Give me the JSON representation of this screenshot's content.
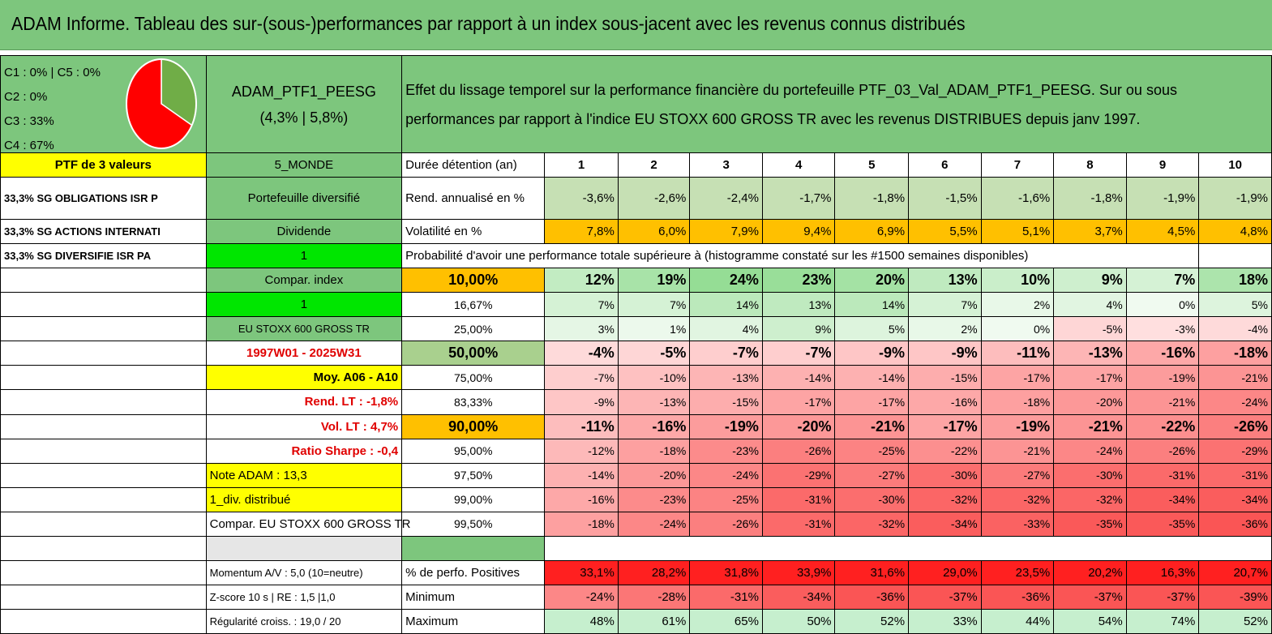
{
  "title": "ADAM Informe. Tableau des sur-(sous-)performances par rapport à un index sous-jacent avec les revenus connus distribués",
  "pie": {
    "labels": [
      "C1 : 0% | C5 : 0%",
      "C2 : 0%",
      "C3 : 33%",
      "C4 : 67%"
    ],
    "slices": [
      {
        "name": "C3",
        "value": 33,
        "color": "#70ad47"
      },
      {
        "name": "C4",
        "value": 67,
        "color": "#ff0000"
      }
    ]
  },
  "portfolio": {
    "name": "ADAM_PTF1_PEESG",
    "perf": "(4,3% | 5,8%)",
    "description_line1": "Effet du lissage temporel sur la performance financière du portefeuille PTF_03_Val_ADAM_PTF1_PEESG. Sur ou sous",
    "description_line2": "performances par rapport à l'indice EU STOXX 600 GROSS TR avec les revenus DISTRIBUES depuis janv 1997.",
    "ptf_count": "PTF de 3 valeurs",
    "zone": "5_MONDE",
    "holdings": [
      "33,3% SG OBLIGATIONS ISR P",
      "33,3% SG ACTIONS INTERNATI",
      "33,3% SG DIVERSIFIE ISR PA"
    ]
  },
  "sidebar": {
    "portfolio_type": "Portefeuille diversifié",
    "dividend": "Dividende",
    "dividend_value": "1",
    "compar_index": "Compar. index",
    "compar_value": "1",
    "index_name": "EU STOXX 600 GROSS TR",
    "period": "1997W01 - 2025W31",
    "moy": "Moy. A06 - A10",
    "rend_lt": "Rend. LT : -1,8%",
    "vol_lt": "Vol. LT : 4,7%",
    "sharpe": "Ratio Sharpe : -0,4",
    "note": "Note ADAM : 13,3",
    "div": "1_div. distribué",
    "compar_full": "Compar. EU STOXX 600 GROSS TR",
    "momentum": "Momentum A/V : 5,0 (10=neutre)",
    "zscore": "Z-score 10 s | RE : 1,5 |1,0",
    "regularite": "Régularité croiss. : 19,0 / 20"
  },
  "table": {
    "years_label": "Durée détention (an)",
    "years": [
      "1",
      "2",
      "3",
      "4",
      "5",
      "6",
      "7",
      "8",
      "9",
      "10"
    ],
    "rend_label": "Rend. annualisé en %",
    "rend": [
      "-3,6%",
      "-2,6%",
      "-2,4%",
      "-1,7%",
      "-1,8%",
      "-1,5%",
      "-1,6%",
      "-1,8%",
      "-1,9%",
      "-1,9%"
    ],
    "vol_label": "Volatilité en %",
    "vol": [
      "7,8%",
      "6,0%",
      "7,9%",
      "9,4%",
      "6,9%",
      "5,5%",
      "5,1%",
      "3,7%",
      "4,5%",
      "4,8%"
    ],
    "proba_label": "Probabilité d'avoir une performance totale supérieure à (histogramme constaté sur les #1500 semaines disponibles)",
    "quantiles": [
      {
        "label": "10,00%",
        "values": [
          "12%",
          "19%",
          "24%",
          "23%",
          "20%",
          "13%",
          "10%",
          "9%",
          "7%",
          "18%"
        ]
      },
      {
        "label": "16,67%",
        "values": [
          "7%",
          "7%",
          "14%",
          "13%",
          "14%",
          "7%",
          "2%",
          "4%",
          "0%",
          "5%"
        ]
      },
      {
        "label": "25,00%",
        "values": [
          "3%",
          "1%",
          "4%",
          "9%",
          "5%",
          "2%",
          "0%",
          "-5%",
          "-3%",
          "-4%"
        ]
      },
      {
        "label": "50,00%",
        "values": [
          "-4%",
          "-5%",
          "-7%",
          "-7%",
          "-9%",
          "-9%",
          "-11%",
          "-13%",
          "-16%",
          "-18%"
        ]
      },
      {
        "label": "75,00%",
        "values": [
          "-7%",
          "-10%",
          "-13%",
          "-14%",
          "-14%",
          "-15%",
          "-17%",
          "-17%",
          "-19%",
          "-21%"
        ]
      },
      {
        "label": "83,33%",
        "values": [
          "-9%",
          "-13%",
          "-15%",
          "-17%",
          "-17%",
          "-16%",
          "-18%",
          "-20%",
          "-21%",
          "-24%"
        ]
      },
      {
        "label": "90,00%",
        "values": [
          "-11%",
          "-16%",
          "-19%",
          "-20%",
          "-21%",
          "-17%",
          "-19%",
          "-21%",
          "-22%",
          "-26%"
        ]
      },
      {
        "label": "95,00%",
        "values": [
          "-12%",
          "-18%",
          "-23%",
          "-26%",
          "-25%",
          "-22%",
          "-21%",
          "-24%",
          "-26%",
          "-29%"
        ]
      },
      {
        "label": "97,50%",
        "values": [
          "-14%",
          "-20%",
          "-24%",
          "-29%",
          "-27%",
          "-30%",
          "-27%",
          "-30%",
          "-31%",
          "-31%"
        ]
      },
      {
        "label": "99,00%",
        "values": [
          "-16%",
          "-23%",
          "-25%",
          "-31%",
          "-30%",
          "-32%",
          "-32%",
          "-32%",
          "-34%",
          "-34%"
        ]
      },
      {
        "label": "99,50%",
        "values": [
          "-18%",
          "-24%",
          "-26%",
          "-31%",
          "-32%",
          "-34%",
          "-33%",
          "-35%",
          "-35%",
          "-36%"
        ]
      }
    ],
    "positive_label": "% de perfo. Positives",
    "positive": [
      "33,1%",
      "28,2%",
      "31,8%",
      "33,9%",
      "31,6%",
      "29,0%",
      "23,5%",
      "20,2%",
      "16,3%",
      "20,7%"
    ],
    "min_label": "Minimum",
    "min": [
      "-24%",
      "-28%",
      "-31%",
      "-34%",
      "-36%",
      "-37%",
      "-36%",
      "-37%",
      "-37%",
      "-39%"
    ],
    "max_label": "Maximum",
    "max": [
      "48%",
      "61%",
      "65%",
      "50%",
      "52%",
      "33%",
      "44%",
      "54%",
      "74%",
      "52%"
    ]
  }
}
